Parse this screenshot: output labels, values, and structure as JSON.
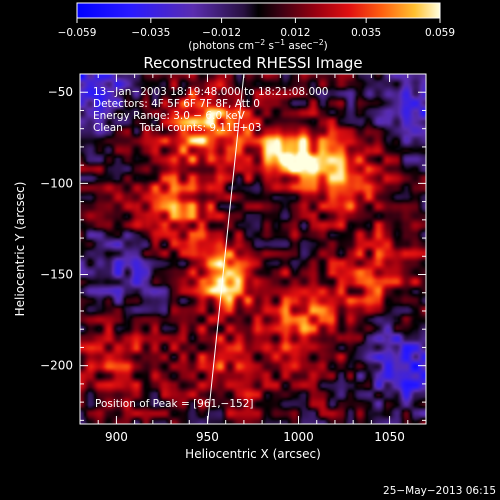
{
  "chart_data": {
    "type": "heatmap",
    "title": "Reconstructed RHESSI Image",
    "xlabel": "Heliocentric X (arcsec)",
    "ylabel": "Heliocentric Y (arcsec)",
    "xlim": [
      880,
      1070
    ],
    "ylim": [
      -232,
      -40
    ],
    "x_ticks": [
      900,
      950,
      1000,
      1050
    ],
    "x_tick_labels": [
      "900",
      "950",
      "1000",
      "1050"
    ],
    "y_ticks": [
      -50,
      -100,
      -150,
      -200
    ],
    "y_tick_labels": [
      "−50",
      "−100",
      "−150",
      "−200"
    ],
    "colorbar": {
      "min": -0.059,
      "max": 0.059,
      "ticks": [
        -0.059,
        -0.035,
        -0.012,
        0.012,
        0.035,
        0.059
      ],
      "tick_labels": [
        "−0.059",
        "−0.035",
        "−0.012",
        "0.012",
        "0.035",
        "0.059"
      ],
      "label_lines": [
        "(photons cm",
        "−2",
        " s",
        "−1",
        " asec",
        "−2",
        ")"
      ]
    },
    "info_lines": [
      "13−Jan−2003 18:19:48.000 to 18:21:08.000",
      "Detectors: 4F 5F 6F 7F 8F, Att 0",
      "Energy Range: 3.0 − 6.0 keV",
      "Clean     Total counts: 9.11E+03"
    ],
    "peak_label": "Position of Peak = [961,−152]",
    "peak": [
      961,
      -152
    ],
    "limb_line": [
      [
        950,
        -232
      ],
      [
        970,
        -40
      ]
    ],
    "sources": [
      {
        "x": 961,
        "y": -152,
        "value": 0.059
      },
      {
        "x": 995,
        "y": -82,
        "value": 0.056
      },
      {
        "x": 950,
        "y": -70,
        "value": 0.042
      },
      {
        "x": 1025,
        "y": -95,
        "value": 0.04
      },
      {
        "x": 930,
        "y": -115,
        "value": 0.035
      },
      {
        "x": 1005,
        "y": -175,
        "value": 0.033
      },
      {
        "x": 1045,
        "y": -150,
        "value": 0.025
      },
      {
        "x": 960,
        "y": -200,
        "value": 0.022
      },
      {
        "x": 900,
        "y": -200,
        "value": 0.02
      },
      {
        "x": 885,
        "y": -45,
        "value": -0.04
      },
      {
        "x": 1060,
        "y": -60,
        "value": -0.035
      },
      {
        "x": 1060,
        "y": -200,
        "value": -0.04
      },
      {
        "x": 905,
        "y": -145,
        "value": -0.025
      }
    ]
  },
  "footer": {
    "date": "25−May−2013 06:15"
  }
}
